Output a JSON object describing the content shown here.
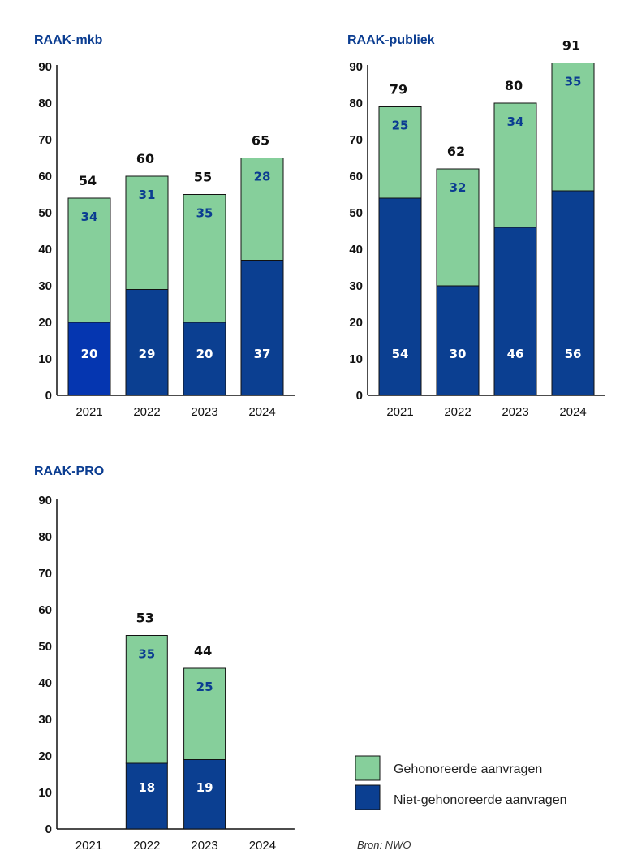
{
  "colors": {
    "title": "#0b3d91",
    "honored": "#86cf9b",
    "rejected": "#0b3f91",
    "rejected_highlight": "#0536b0",
    "honored_label": "#0b3d91",
    "rejected_label": "#ffffff",
    "total_label": "#111111",
    "axis": "#111111",
    "bar_stroke": "#111111"
  },
  "legend": {
    "honored": "Gehonoreerde aanvragen",
    "rejected": "Niet-gehonoreerde aanvragen"
  },
  "source": "Bron: NWO",
  "chart_data": [
    {
      "type": "bar",
      "title": "RAAK-mkb",
      "categories": [
        "2021",
        "2022",
        "2023",
        "2024"
      ],
      "ylim": [
        0,
        90
      ],
      "yticks": [
        0,
        10,
        20,
        30,
        40,
        50,
        60,
        70,
        80,
        90
      ],
      "series": [
        {
          "name": "Niet-gehonoreerde aanvragen",
          "key": "rejected",
          "values": [
            20,
            29,
            20,
            37
          ]
        },
        {
          "name": "Gehonoreerde aanvragen",
          "key": "honored",
          "values": [
            34,
            31,
            35,
            28
          ]
        }
      ],
      "totals": [
        54,
        60,
        55,
        65
      ],
      "stacked": true
    },
    {
      "type": "bar",
      "title": "RAAK-publiek",
      "categories": [
        "2021",
        "2022",
        "2023",
        "2024"
      ],
      "ylim": [
        0,
        90
      ],
      "yticks": [
        0,
        10,
        20,
        30,
        40,
        50,
        60,
        70,
        80,
        90
      ],
      "series": [
        {
          "name": "Niet-gehonoreerde aanvragen",
          "key": "rejected",
          "values": [
            54,
            30,
            46,
            56
          ]
        },
        {
          "name": "Gehonoreerde aanvragen",
          "key": "honored",
          "values": [
            25,
            32,
            34,
            35
          ]
        }
      ],
      "totals": [
        79,
        62,
        80,
        91
      ],
      "stacked": true
    },
    {
      "type": "bar",
      "title": "RAAK-PRO",
      "categories": [
        "2021",
        "2022",
        "2023",
        "2024"
      ],
      "ylim": [
        0,
        90
      ],
      "yticks": [
        0,
        10,
        20,
        30,
        40,
        50,
        60,
        70,
        80,
        90
      ],
      "series": [
        {
          "name": "Niet-gehonoreerde aanvragen",
          "key": "rejected",
          "values": [
            null,
            18,
            19,
            null
          ]
        },
        {
          "name": "Gehonoreerde aanvragen",
          "key": "honored",
          "values": [
            null,
            35,
            25,
            null
          ]
        }
      ],
      "totals": [
        null,
        53,
        44,
        null
      ],
      "stacked": true
    }
  ]
}
